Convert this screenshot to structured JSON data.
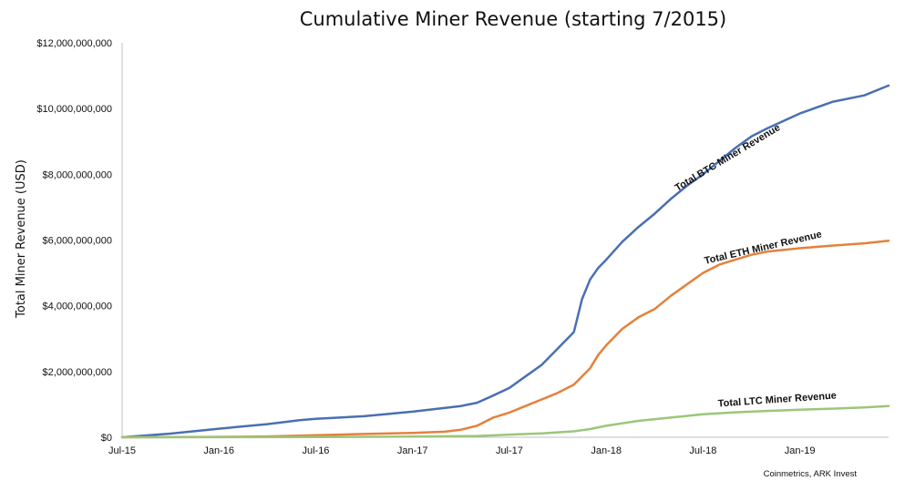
{
  "chart_data": {
    "type": "line",
    "title": "Cumulative Miner Revenue (starting 7/2015)",
    "ylabel": "Total Miner Revenue (USD)",
    "xlabel": "",
    "source": "Coinmetrics, ARK Invest",
    "x_ticks": [
      "Jul-15",
      "Jan-16",
      "Jul-16",
      "Jan-17",
      "Jul-17",
      "Jan-18",
      "Jul-18",
      "Jan-19"
    ],
    "x_tick_months": [
      0,
      6,
      12,
      18,
      24,
      30,
      36,
      42
    ],
    "y_ticks": [
      "$0",
      "$2,000,000,000",
      "$4,000,000,000",
      "$6,000,000,000",
      "$8,000,000,000",
      "$10,000,000,000",
      "$12,000,000,000"
    ],
    "y_tick_values": [
      0,
      2000000000,
      4000000000,
      6000000000,
      8000000000,
      10000000000,
      12000000000
    ],
    "ylim": [
      0,
      12000000000
    ],
    "x_unit": "months since Jul-15",
    "xlim": [
      0,
      47.5
    ],
    "grid": false,
    "legend": "none",
    "series": [
      {
        "name": "Total BTC Miner Revenue",
        "color": "#4a6fb3",
        "x": [
          0,
          3,
          6,
          9,
          11,
          12,
          15,
          18,
          21,
          22,
          23,
          24,
          25,
          26,
          27,
          28,
          28.5,
          29,
          29.5,
          30,
          31,
          32,
          33,
          34,
          35,
          36,
          37,
          38,
          39,
          40,
          42,
          44,
          46,
          47.5
        ],
        "y": [
          0,
          110000000,
          260000000,
          400000000,
          520000000,
          560000000,
          640000000,
          780000000,
          950000000,
          1050000000,
          1270000000,
          1500000000,
          1850000000,
          2200000000,
          2700000000,
          3200000000,
          4200000000,
          4800000000,
          5150000000,
          5400000000,
          5950000000,
          6400000000,
          6800000000,
          7250000000,
          7650000000,
          8000000000,
          8400000000,
          8800000000,
          9150000000,
          9400000000,
          9850000000,
          10200000000,
          10400000000,
          10700000000
        ]
      },
      {
        "name": "Total ETH Miner Revenue",
        "color": "#e5813c",
        "x": [
          0,
          6,
          9,
          12,
          15,
          18,
          20,
          21,
          22,
          23,
          24,
          25,
          26,
          27,
          28,
          29,
          29.5,
          30,
          31,
          32,
          33,
          34,
          35,
          36,
          37,
          38,
          39,
          40,
          42,
          44,
          46,
          47.5
        ],
        "y": [
          0,
          10000000,
          25000000,
          60000000,
          100000000,
          130000000,
          170000000,
          230000000,
          350000000,
          600000000,
          750000000,
          950000000,
          1150000000,
          1350000000,
          1600000000,
          2100000000,
          2500000000,
          2800000000,
          3300000000,
          3650000000,
          3900000000,
          4300000000,
          4650000000,
          5000000000,
          5250000000,
          5400000000,
          5550000000,
          5650000000,
          5750000000,
          5830000000,
          5900000000,
          5980000000
        ]
      },
      {
        "name": "Total LTC Miner Revenue",
        "color": "#9bc67b",
        "x": [
          0,
          12,
          18,
          22,
          24,
          26,
          28,
          29,
          30,
          32,
          34,
          36,
          38,
          40,
          42,
          44,
          46,
          47.5
        ],
        "y": [
          0,
          8000000,
          20000000,
          40000000,
          80000000,
          120000000,
          180000000,
          250000000,
          350000000,
          500000000,
          600000000,
          700000000,
          760000000,
          800000000,
          840000000,
          870000000,
          910000000,
          950000000
        ]
      }
    ]
  }
}
